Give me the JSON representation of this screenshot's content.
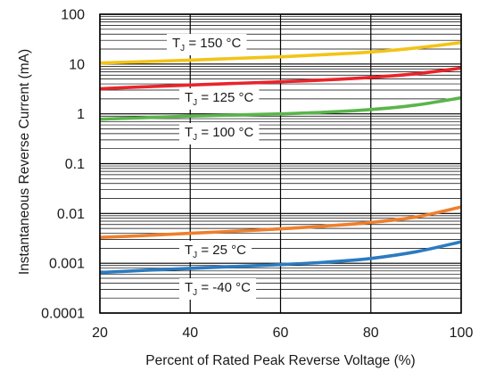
{
  "chart_data": {
    "type": "line",
    "xlabel": "Percent of Rated Peak Reverse Voltage (%)",
    "ylabel": "Instantaneous Reverse Current (mA)",
    "xlim": [
      20,
      100
    ],
    "ylim": [
      0.0001,
      100
    ],
    "yscale": "log",
    "grid": true,
    "x_ticks": [
      20,
      40,
      60,
      80,
      100
    ],
    "x_tick_labels": [
      "20",
      "40",
      "60",
      "80",
      "100"
    ],
    "y_ticks": [
      0.0001,
      0.001,
      0.01,
      0.1,
      1,
      10,
      100
    ],
    "y_tick_labels": [
      "0.0001",
      "0.001",
      "0.01",
      "0.1",
      "1",
      "10",
      "100"
    ],
    "x": [
      20,
      30,
      40,
      50,
      60,
      70,
      80,
      90,
      100
    ],
    "series": [
      {
        "key": "t150",
        "label_main": "T",
        "label_sub": "J",
        "label_rest": " = 150 °C",
        "color": "#f2c418",
        "values": [
          10.5,
          11.2,
          12,
          13,
          14,
          15.5,
          17.5,
          21,
          27
        ]
      },
      {
        "key": "t125",
        "label_main": "T",
        "label_sub": "J",
        "label_rest": " = 125 °C",
        "color": "#e8242b",
        "values": [
          3.2,
          3.5,
          3.8,
          4.1,
          4.4,
          4.8,
          5.4,
          6.4,
          8.3
        ]
      },
      {
        "key": "t100",
        "label_main": "T",
        "label_sub": "J",
        "label_rest": " = 100 °C",
        "color": "#5ab54b",
        "values": [
          0.78,
          0.84,
          0.9,
          0.95,
          1.0,
          1.08,
          1.22,
          1.5,
          2.1
        ]
      },
      {
        "key": "t25",
        "label_main": "T",
        "label_sub": "J",
        "label_rest": " = 25 °C",
        "color": "#ee7f2d",
        "values": [
          0.0033,
          0.0036,
          0.004,
          0.0044,
          0.0049,
          0.0056,
          0.0066,
          0.0085,
          0.0135
        ]
      },
      {
        "key": "tm40",
        "label_main": "T",
        "label_sub": "J",
        "label_rest": " = -40 °C",
        "color": "#2b7bc0",
        "values": [
          0.00065,
          0.00072,
          0.00079,
          0.00086,
          0.00094,
          0.00105,
          0.00125,
          0.0017,
          0.0027
        ]
      }
    ]
  }
}
